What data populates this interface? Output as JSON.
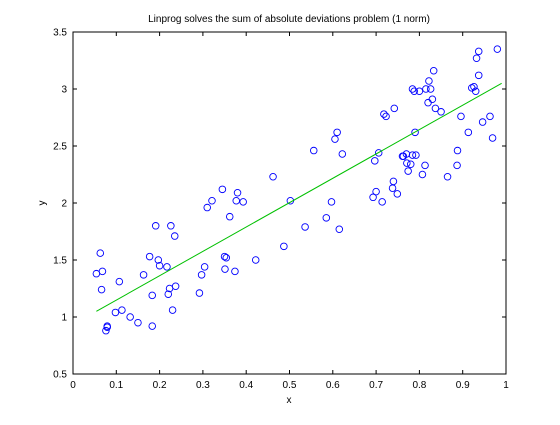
{
  "chart_data": {
    "type": "scatter",
    "title": "Linprog solves the sum of absolute deviations problem (1 norm)",
    "xlabel": "x",
    "ylabel": "y",
    "xlim": [
      0,
      1
    ],
    "ylim": [
      0.5,
      3.5
    ],
    "xticks": [
      "0",
      "0.1",
      "0.2",
      "0.3",
      "0.4",
      "0.5",
      "0.6",
      "0.7",
      "0.8",
      "0.9",
      "1"
    ],
    "yticks": [
      "0.5",
      "1",
      "1.5",
      "2",
      "2.5",
      "3",
      "3.5"
    ],
    "grid": false,
    "legend": "none",
    "colors": {
      "points": "#0000ff",
      "fit_line": "#00c000",
      "axes": "#000000"
    },
    "series": [
      {
        "kind": "scatter",
        "marker": "circle",
        "x": [
          0.054,
          0.063,
          0.066,
          0.068,
          0.076,
          0.079,
          0.079,
          0.098,
          0.107,
          0.113,
          0.132,
          0.15,
          0.163,
          0.177,
          0.183,
          0.183,
          0.191,
          0.197,
          0.2,
          0.217,
          0.22,
          0.223,
          0.226,
          0.23,
          0.235,
          0.237,
          0.292,
          0.297,
          0.304,
          0.31,
          0.321,
          0.345,
          0.35,
          0.351,
          0.354,
          0.362,
          0.374,
          0.377,
          0.38,
          0.393,
          0.422,
          0.462,
          0.487,
          0.502,
          0.536,
          0.556,
          0.585,
          0.597,
          0.605,
          0.61,
          0.615,
          0.622,
          0.693,
          0.697,
          0.7,
          0.706,
          0.714,
          0.718,
          0.723,
          0.738,
          0.74,
          0.742,
          0.749,
          0.761,
          0.763,
          0.77,
          0.771,
          0.774,
          0.78,
          0.784,
          0.784,
          0.788,
          0.79,
          0.792,
          0.8,
          0.807,
          0.813,
          0.815,
          0.82,
          0.822,
          0.826,
          0.83,
          0.833,
          0.837,
          0.85,
          0.865,
          0.887,
          0.888,
          0.896,
          0.913,
          0.921,
          0.926,
          0.93,
          0.932,
          0.937,
          0.937,
          0.946,
          0.963,
          0.969,
          0.98
        ],
        "y": [
          1.38,
          1.56,
          1.24,
          1.4,
          0.88,
          0.92,
          0.91,
          1.04,
          1.31,
          1.06,
          1.0,
          0.95,
          1.37,
          1.53,
          1.19,
          0.92,
          1.8,
          1.5,
          1.45,
          1.44,
          1.2,
          1.25,
          1.8,
          1.06,
          1.71,
          1.27,
          1.21,
          1.37,
          1.44,
          1.96,
          2.02,
          2.12,
          1.53,
          1.42,
          1.52,
          1.88,
          1.4,
          2.02,
          2.09,
          2.01,
          1.5,
          2.23,
          1.62,
          2.02,
          1.79,
          2.46,
          1.87,
          2.01,
          2.56,
          2.62,
          1.77,
          2.43,
          2.05,
          2.37,
          2.1,
          2.44,
          2.01,
          2.78,
          2.76,
          2.13,
          2.19,
          2.83,
          2.08,
          2.41,
          2.41,
          2.43,
          2.35,
          2.28,
          2.34,
          3.0,
          2.42,
          2.98,
          2.62,
          2.42,
          2.98,
          2.25,
          2.33,
          3.0,
          2.88,
          3.07,
          3.0,
          2.91,
          3.16,
          2.83,
          2.8,
          2.23,
          2.33,
          2.46,
          2.76,
          2.62,
          3.01,
          3.02,
          2.98,
          3.27,
          3.33,
          3.12,
          2.71,
          2.76,
          2.57,
          3.35
        ]
      },
      {
        "kind": "line",
        "x": [
          0.054,
          0.99
        ],
        "y": [
          1.05,
          3.05
        ]
      }
    ]
  }
}
